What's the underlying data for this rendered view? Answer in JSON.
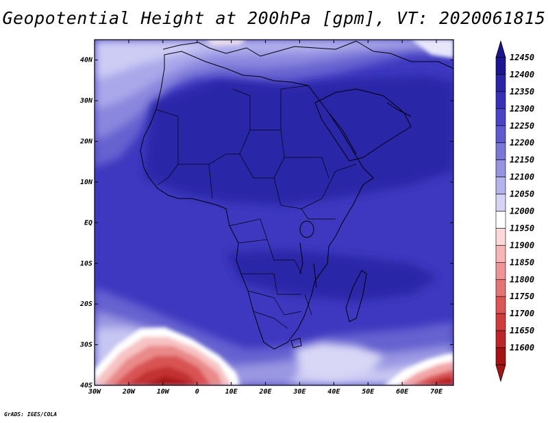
{
  "title": "Geopotential Height at 200hPa [gpm], VT: 2020061815",
  "credit": "GrADS: IGES/COLA",
  "map": {
    "lon_range": [
      -30,
      75
    ],
    "lat_range": [
      -40,
      45
    ],
    "lon_ticks": [
      "30W",
      "20W",
      "10W",
      "0",
      "10E",
      "20E",
      "30E",
      "40E",
      "50E",
      "60E",
      "70E"
    ],
    "lat_ticks": [
      "40S",
      "30S",
      "20S",
      "10S",
      "EQ",
      "10N",
      "20N",
      "30N",
      "40N"
    ]
  },
  "colorbar": {
    "levels": [
      "12450",
      "12400",
      "12350",
      "12300",
      "12250",
      "12200",
      "12150",
      "12100",
      "12050",
      "12000",
      "11950",
      "11900",
      "11850",
      "11800",
      "11750",
      "11700",
      "11650",
      "11600"
    ],
    "colors": [
      "#1c1590",
      "#2a24a8",
      "#3630b8",
      "#4a45c6",
      "#5e5ad0",
      "#7a77da",
      "#9593e2",
      "#b5b3ec",
      "#d5d4f5",
      "#ffffff",
      "#fcd8d8",
      "#f7b5b5",
      "#f09595",
      "#e77474",
      "#dc5656",
      "#cf3c3c",
      "#bc2626",
      "#a51414"
    ]
  }
}
